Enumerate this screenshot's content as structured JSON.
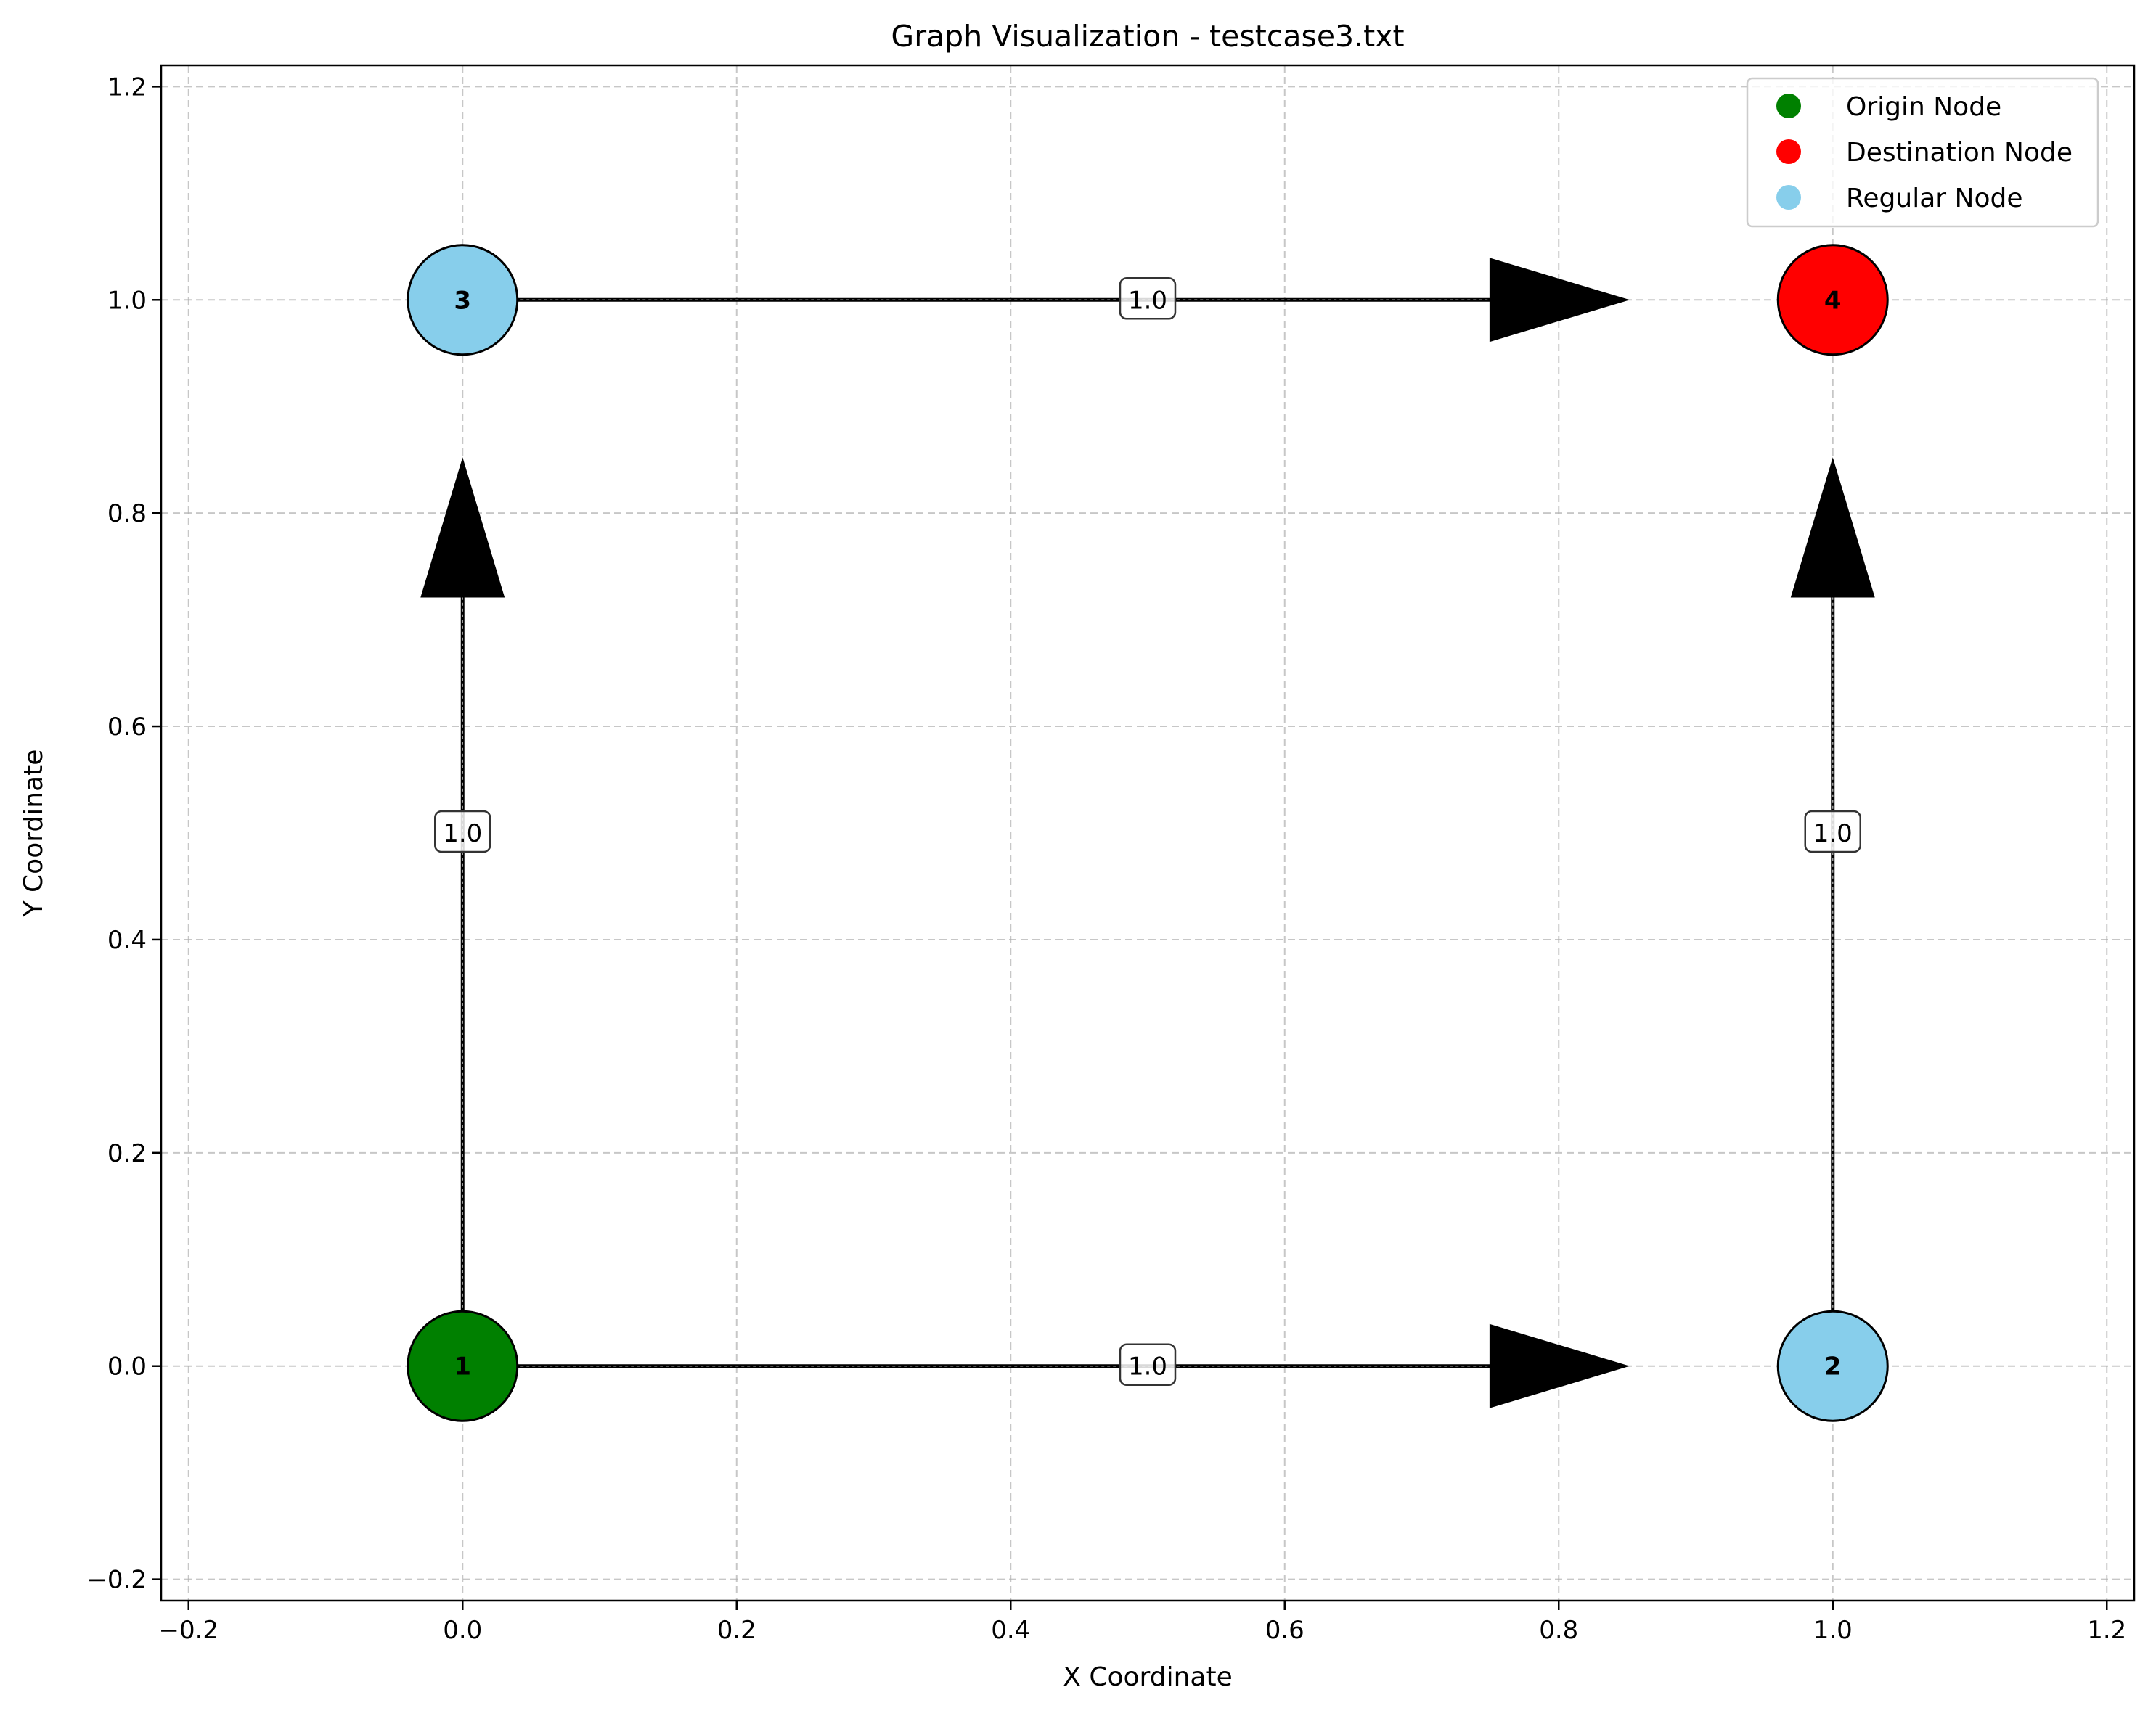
{
  "chart_data": {
    "type": "scatter",
    "title": "Graph Visualization - testcase3.txt",
    "xlabel": "X Coordinate",
    "ylabel": "Y Coordinate",
    "xlim": [
      -0.22,
      1.22
    ],
    "ylim": [
      -0.22,
      1.22
    ],
    "xticks": [
      -0.2,
      0.0,
      0.2,
      0.4,
      0.6,
      0.8,
      1.0,
      1.2
    ],
    "yticks": [
      -0.2,
      0.0,
      0.2,
      0.4,
      0.6,
      0.8,
      1.0,
      1.2
    ],
    "xtick_labels": [
      "−0.2",
      "0.0",
      "0.2",
      "0.4",
      "0.6",
      "0.8",
      "1.0",
      "1.2"
    ],
    "ytick_labels": [
      "−0.2",
      "0.0",
      "0.2",
      "0.4",
      "0.6",
      "0.8",
      "1.0",
      "1.2"
    ],
    "grid": true,
    "legend_position": "top-right",
    "legend": [
      {
        "label": "Origin Node",
        "color": "#008000"
      },
      {
        "label": "Destination Node",
        "color": "#ff0000"
      },
      {
        "label": "Regular Node",
        "color": "#87ceeb"
      }
    ],
    "nodes": [
      {
        "id": "1",
        "x": 0.0,
        "y": 0.0,
        "color": "#008000"
      },
      {
        "id": "2",
        "x": 1.0,
        "y": 0.0,
        "color": "#87ceeb"
      },
      {
        "id": "3",
        "x": 0.0,
        "y": 1.0,
        "color": "#87ceeb"
      },
      {
        "id": "4",
        "x": 1.0,
        "y": 1.0,
        "color": "#ff0000"
      }
    ],
    "edges": [
      {
        "from": "1",
        "to": "2",
        "weight": "1.0"
      },
      {
        "from": "1",
        "to": "3",
        "weight": "1.0"
      },
      {
        "from": "2",
        "to": "4",
        "weight": "1.0"
      },
      {
        "from": "3",
        "to": "4",
        "weight": "1.0"
      }
    ]
  }
}
